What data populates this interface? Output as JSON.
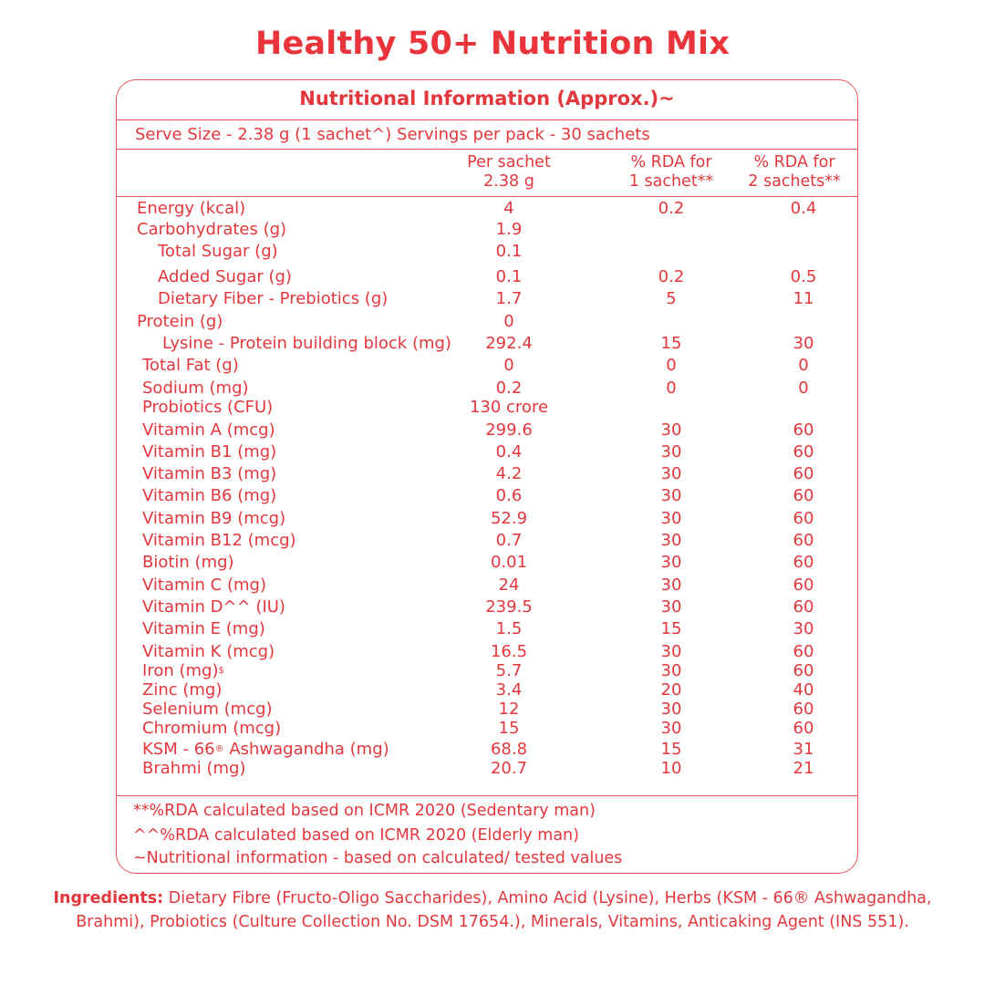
{
  "title": "Healthy 50+ Nutrition Mix",
  "panel": {
    "heading": "Nutritional Information (Approx.)~",
    "serve_size": "Serve Size - 2.38 g (1 sachet^)  Servings per pack - 30 sachets",
    "col_per_1": "Per sachet",
    "col_per_2": "2.38 g",
    "col_rda1_1": "% RDA  for",
    "col_rda1_2": "1 sachet**",
    "col_rda2_1": "% RDA for",
    "col_rda2_2": "2 sachets**"
  },
  "rows": [
    {
      "name": "Energy (kcal)",
      "per": "4",
      "rda1": "0.2",
      "rda2": "0.4"
    },
    {
      "name": "Carbohydrates (g)",
      "per": "1.9",
      "rda1": "",
      "rda2": ""
    },
    {
      "name": "Total Sugar (g)",
      "per": "0.1",
      "rda1": "",
      "rda2": ""
    },
    {
      "name": "Added Sugar (g)",
      "per": "0.1",
      "rda1": "0.2",
      "rda2": "0.5"
    },
    {
      "name": "Dietary Fiber - Prebiotics (g)",
      "per": "1.7",
      "rda1": "5",
      "rda2": "11"
    },
    {
      "name": "Protein (g)",
      "per": "0",
      "rda1": "",
      "rda2": ""
    },
    {
      "name": "Lysine - Protein building block (mg)",
      "per": "292.4",
      "rda1": "15",
      "rda2": "30"
    },
    {
      "name": "Total Fat (g)",
      "per": "0",
      "rda1": "0",
      "rda2": "0"
    },
    {
      "name": "Sodium (mg)",
      "per": "0.2",
      "rda1": "0",
      "rda2": "0"
    },
    {
      "name": "Probiotics (CFU)",
      "per": "130 crore",
      "rda1": "",
      "rda2": ""
    },
    {
      "name": "Vitamin A (mcg)",
      "per": "299.6",
      "rda1": "30",
      "rda2": "60"
    },
    {
      "name": "Vitamin B1 (mg)",
      "per": "0.4",
      "rda1": "30",
      "rda2": "60"
    },
    {
      "name": "Vitamin B3 (mg)",
      "per": "4.2",
      "rda1": "30",
      "rda2": "60"
    },
    {
      "name": "Vitamin B6 (mg)",
      "per": "0.6",
      "rda1": "30",
      "rda2": "60"
    },
    {
      "name": "Vitamin  B9 (mcg)",
      "per": "52.9",
      "rda1": "30",
      "rda2": "60"
    },
    {
      "name": "Vitamin  B12 (mcg)",
      "per": "0.7",
      "rda1": "30",
      "rda2": "60"
    },
    {
      "name": "Biotin  (mg)",
      "per": "0.01",
      "rda1": "30",
      "rda2": "60"
    },
    {
      "name": "Vitamin C (mg)",
      "per": "24",
      "rda1": "30",
      "rda2": "60"
    },
    {
      "name": "Vitamin D^^ (IU)",
      "per": "239.5",
      "rda1": "30",
      "rda2": "60"
    },
    {
      "name": "Vitamin E (mg)",
      "per": "1.5",
      "rda1": "15",
      "rda2": "30"
    },
    {
      "name": "Vitamin K (mcg)",
      "per": "16.5",
      "rda1": "30",
      "rda2": "60"
    },
    {
      "name": "Iron (mg)",
      "sup": "$",
      "per": "5.7",
      "rda1": "30",
      "rda2": "60"
    },
    {
      "name": "Zinc (mg)",
      "per": "3.4",
      "rda1": "20",
      "rda2": "40"
    },
    {
      "name": "Selenium (mcg)",
      "per": "12",
      "rda1": "30",
      "rda2": "60"
    },
    {
      "name": "Chromium (mcg)",
      "per": "15",
      "rda1": "30",
      "rda2": "60"
    },
    {
      "name": "KSM - 66",
      "sup": "®",
      "name_after": " Ashwagandha (mg)",
      "per": "68.8",
      "rda1": "15",
      "rda2": "31"
    },
    {
      "name": "Brahmi (mg)",
      "per": "20.7",
      "rda1": "10",
      "rda2": "21"
    }
  ],
  "footnotes": [
    "**%RDA calculated based on ICMR 2020 (Sedentary man)",
    "^^%RDA calculated based on ICMR 2020 (Elderly man)",
    "~Nutritional information - based on calculated/ tested values"
  ],
  "ingredients": {
    "label": "Ingredients:",
    "text": " Dietary Fibre (Fructo-Oligo Saccharides), Amino Acid (Lysine), Herbs (KSM - 66® Ashwagandha, Brahmi), Probiotics (Culture Collection No. DSM 17654.), Minerals, Vitamins, Anticaking Agent (INS 551)."
  }
}
